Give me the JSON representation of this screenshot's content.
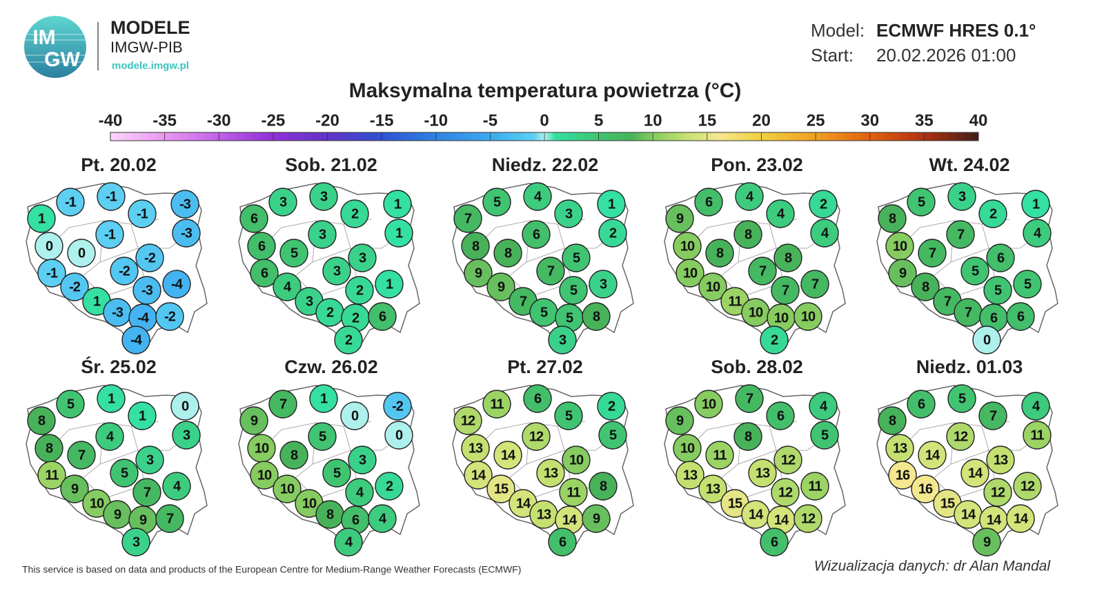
{
  "header": {
    "logo_top": "IM",
    "logo_bottom": "GW",
    "brand": "MODELE",
    "org": "IMGW-PIB",
    "url": "modele.imgw.pl",
    "model_label": "Model:",
    "model": "ECMWF HRES 0.1°",
    "start_label": "Start:",
    "start": "20.02.2026 01:00"
  },
  "title": "Maksymalna temperatura powietrza (°C)",
  "colorbar": {
    "lim": [
      -40,
      40
    ],
    "ticks": [
      -40,
      -35,
      -30,
      -25,
      -20,
      -15,
      -10,
      -5,
      0,
      5,
      10,
      15,
      20,
      25,
      30,
      35,
      40
    ],
    "colorscale": [
      [
        -40,
        "#fad4fa"
      ],
      [
        -35,
        "#ea98f0"
      ],
      [
        -30,
        "#c060e8"
      ],
      [
        -25,
        "#9030d8"
      ],
      [
        -20,
        "#6034c8"
      ],
      [
        -15,
        "#3050d0"
      ],
      [
        -10,
        "#3082e2"
      ],
      [
        -5,
        "#3aaaf0"
      ],
      [
        -1,
        "#5ccff2"
      ],
      [
        0,
        "#aef0ec"
      ],
      [
        1,
        "#34e0a2"
      ],
      [
        5,
        "#40c472"
      ],
      [
        8,
        "#48b25a"
      ],
      [
        10,
        "#86cc60"
      ],
      [
        13,
        "#c4e070"
      ],
      [
        16,
        "#f4e88e"
      ],
      [
        20,
        "#f0d040"
      ],
      [
        25,
        "#f0a020"
      ],
      [
        30,
        "#e06010"
      ],
      [
        35,
        "#b03010"
      ],
      [
        40,
        "#40201a"
      ]
    ]
  },
  "maps": [
    {
      "date": "Pt. 20.02",
      "values": [
        -1,
        -1,
        -3,
        1,
        -1,
        -3,
        -1,
        0,
        0,
        -2,
        -2,
        -1,
        -4,
        -2,
        -3,
        1,
        -3,
        -4,
        -2,
        -4
      ]
    },
    {
      "date": "Sob. 21.02",
      "values": [
        3,
        3,
        1,
        6,
        2,
        1,
        3,
        6,
        5,
        3,
        3,
        6,
        1,
        4,
        2,
        3,
        2,
        2,
        6,
        2
      ]
    },
    {
      "date": "Niedz. 22.02",
      "values": [
        5,
        4,
        1,
        7,
        3,
        2,
        6,
        8,
        8,
        5,
        7,
        9,
        3,
        9,
        5,
        7,
        5,
        5,
        8,
        3
      ]
    },
    {
      "date": "Pon. 23.02",
      "values": [
        6,
        4,
        2,
        9,
        4,
        4,
        8,
        10,
        8,
        8,
        7,
        10,
        7,
        10,
        7,
        11,
        10,
        10,
        10,
        2
      ]
    },
    {
      "date": "Wt. 24.02",
      "values": [
        5,
        3,
        1,
        8,
        2,
        4,
        7,
        10,
        7,
        6,
        5,
        9,
        5,
        8,
        5,
        7,
        7,
        6,
        6,
        0
      ]
    },
    {
      "date": "Śr. 25.02",
      "values": [
        5,
        1,
        0,
        8,
        1,
        3,
        4,
        8,
        7,
        3,
        5,
        11,
        4,
        9,
        7,
        10,
        9,
        9,
        7,
        3
      ]
    },
    {
      "date": "Czw. 26.02",
      "values": [
        7,
        1,
        -2,
        9,
        0,
        0,
        5,
        10,
        8,
        3,
        5,
        10,
        2,
        10,
        4,
        10,
        8,
        6,
        4,
        4
      ]
    },
    {
      "date": "Pt. 27.02",
      "values": [
        11,
        6,
        2,
        12,
        5,
        5,
        12,
        13,
        14,
        10,
        13,
        14,
        8,
        15,
        11,
        14,
        13,
        14,
        9,
        6
      ]
    },
    {
      "date": "Sob. 28.02",
      "values": [
        10,
        7,
        4,
        9,
        6,
        5,
        8,
        10,
        11,
        12,
        13,
        13,
        11,
        13,
        12,
        15,
        14,
        14,
        12,
        6
      ]
    },
    {
      "date": "Niedz. 01.03",
      "values": [
        6,
        5,
        4,
        8,
        7,
        11,
        12,
        13,
        14,
        13,
        14,
        16,
        12,
        16,
        12,
        15,
        14,
        14,
        14,
        9
      ]
    }
  ],
  "footer": {
    "credit": "This service is based on data and products of the European Centre for Medium-Range Weather Forecasts (ECMWF)",
    "author": "Wizualizacja danych: dr Alan Mandal"
  }
}
